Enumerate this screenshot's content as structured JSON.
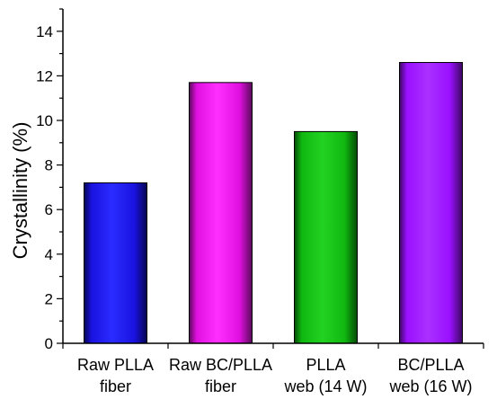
{
  "chart_data": {
    "type": "bar",
    "categories": [
      [
        "Raw PLLA",
        "fiber"
      ],
      [
        "Raw BC/PLLA",
        "fiber"
      ],
      [
        "PLLA",
        "web (14 W)"
      ],
      [
        "BC/PLLA",
        "web (16 W)"
      ]
    ],
    "values": [
      7.2,
      11.7,
      9.5,
      12.6
    ],
    "bar_colors": [
      {
        "base": "#1a12e0",
        "dark": "#050550",
        "light": "#2a2cff"
      },
      {
        "base": "#e010e0",
        "dark": "#5a0a5a",
        "light": "#ff30ff"
      },
      {
        "base": "#10b810",
        "dark": "#064a06",
        "light": "#22d222"
      },
      {
        "base": "#9a10ff",
        "dark": "#3c0860",
        "light": "#aa30ff"
      }
    ],
    "title": "",
    "xlabel": "",
    "ylabel": "Crystallinity (%)",
    "ylim": [
      0,
      15
    ],
    "yticks": [
      0,
      2,
      4,
      6,
      8,
      10,
      12,
      14
    ],
    "grid": false,
    "legend": "none"
  }
}
